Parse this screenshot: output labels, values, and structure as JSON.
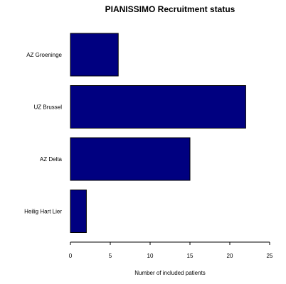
{
  "chart_data": {
    "type": "bar",
    "orientation": "horizontal",
    "title": "PIANISSIMO Recruitment status",
    "xlabel": "Number of included patients",
    "ylabel": "",
    "categories": [
      "AZ Groeninge",
      "UZ Brussel",
      "AZ Delta",
      "Heilig Hart Lier"
    ],
    "values": [
      6,
      22,
      15,
      2
    ],
    "xlim": [
      0,
      25
    ],
    "xticks": [
      0,
      5,
      10,
      15,
      20,
      25
    ],
    "grid": false,
    "bar_color": "#000080",
    "bar_edge_color": "#000000"
  }
}
